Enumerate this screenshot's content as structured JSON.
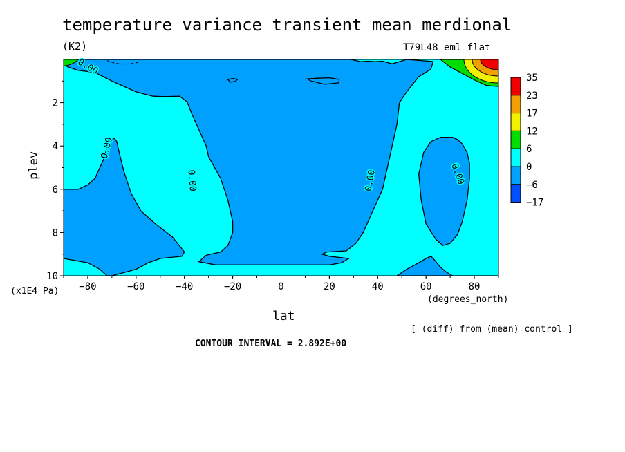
{
  "title": "temperature variance transient mean merdional",
  "units_label": "(K2)",
  "run_label": "T79L48_eml_flat",
  "y_unit": "(x1E4 Pa)",
  "x_unit": "(degrees_north)",
  "diff_note": "[ (diff) from (mean) control ]",
  "contour_interval": "CONTOUR INTERVAL = 2.892E+00",
  "chart_data": {
    "type": "contour",
    "title": "temperature variance transient mean merdional",
    "xlabel": "lat",
    "ylabel": "plev",
    "xlim": [
      -90,
      90
    ],
    "ylim": [
      0,
      10
    ],
    "y_inverted": true,
    "x_ticks": [
      -80,
      -60,
      -40,
      -20,
      0,
      20,
      40,
      60,
      80
    ],
    "y_ticks": [
      2,
      4,
      6,
      8,
      10
    ],
    "contour_interval": 2.892,
    "contour_labels": [
      "0.00",
      "0.00",
      "0.00",
      "0.00",
      "0.00"
    ],
    "colorbar": {
      "levels": [
        35,
        23,
        17,
        12,
        6,
        0,
        -6,
        -17
      ],
      "colors": [
        "#f00000",
        "#f0a000",
        "#f0f000",
        "#00dc00",
        "#00ffff",
        "#00a0ff",
        "#0050ff"
      ]
    },
    "fill_colors": {
      "background": "#00ffff",
      "negative": "#00a0ff",
      "strong_positive": [
        "#00dc00",
        "#f0f000",
        "#f0a000",
        "#f00000"
      ]
    },
    "regions": [
      {
        "name": "central-tropics",
        "sign": "negative",
        "x": [
          -90,
          -88,
          -84,
          -77,
          -70,
          -60,
          -53,
          -48,
          -42,
          -39,
          -38,
          -37,
          -35,
          -33,
          -31,
          -30,
          -25,
          -22,
          -20,
          -20,
          -22,
          -25,
          -31,
          -34,
          -27,
          -20,
          -10,
          0,
          10,
          20,
          25,
          28,
          20,
          17,
          19,
          27,
          31,
          34,
          38,
          40,
          42,
          44,
          46,
          48,
          49,
          52,
          57,
          62,
          63,
          58,
          52,
          46,
          42,
          39,
          36,
          33,
          31,
          29,
          27,
          25,
          22,
          18,
          -2,
          -10,
          -20,
          -36,
          -46,
          -57,
          -62,
          -63,
          -70,
          -76,
          -78,
          -90
        ],
        "y": [
          0.25,
          0.35,
          0.5,
          0.6,
          1.0,
          1.5,
          1.7,
          1.72,
          1.7,
          1.95,
          2.2,
          2.5,
          3.0,
          3.5,
          4.0,
          4.5,
          5.5,
          6.5,
          7.5,
          8.0,
          8.6,
          8.9,
          9.05,
          9.35,
          9.5,
          9.5,
          9.5,
          9.5,
          9.5,
          9.5,
          9.4,
          9.2,
          9.1,
          9.0,
          8.9,
          8.85,
          8.5,
          8.0,
          7.0,
          6.5,
          6.0,
          5.0,
          4.0,
          3.0,
          2.0,
          1.5,
          0.8,
          0.45,
          0.1,
          0.05,
          0.0,
          0.2,
          0.08,
          0.1,
          0.08,
          0.1,
          0.05,
          0.0,
          0.0,
          0.0,
          0.0,
          0.0,
          0.0,
          0.0,
          0.0,
          0.0,
          0.0,
          0.0,
          0.0,
          0.0,
          0.0,
          0.0,
          0.0,
          0.0
        ]
      },
      {
        "name": "sh-lobe",
        "sign": "negative",
        "x": [
          -84,
          -80,
          -77,
          -75,
          -73,
          -72,
          -70,
          -69,
          -68,
          -67,
          -65,
          -62,
          -58,
          -52,
          -45,
          -40,
          -41,
          -50,
          -55,
          -60,
          -70,
          -72,
          -72,
          -75,
          -80,
          -90,
          -90,
          -86
        ],
        "y": [
          6.0,
          5.8,
          5.5,
          5.0,
          4.5,
          4.0,
          3.7,
          3.65,
          3.8,
          4.3,
          5.2,
          6.2,
          7.0,
          7.6,
          8.2,
          8.9,
          9.1,
          9.2,
          9.4,
          9.7,
          10,
          10,
          10,
          9.7,
          9.4,
          9.2,
          6.0,
          6.0
        ]
      },
      {
        "name": "nh-lobe",
        "sign": "negative",
        "x": [
          66,
          62,
          59,
          57,
          58,
          60,
          64,
          67,
          70,
          73,
          75,
          77,
          78,
          78,
          77,
          75,
          73,
          71
        ],
        "y": [
          3.6,
          3.8,
          4.3,
          5.3,
          6.5,
          7.6,
          8.3,
          8.6,
          8.5,
          8.1,
          7.5,
          6.5,
          5.5,
          4.8,
          4.3,
          3.9,
          3.7,
          3.6
        ]
      },
      {
        "name": "nh-bottom",
        "sign": "negative",
        "x": [
          48,
          52,
          57,
          60,
          62,
          63,
          66,
          68,
          71,
          75,
          80,
          84,
          87,
          90,
          90,
          48
        ],
        "y": [
          10,
          9.7,
          9.4,
          9.2,
          9.1,
          9.2,
          9.6,
          9.8,
          10,
          10,
          10,
          10,
          10,
          10,
          10,
          10
        ]
      },
      {
        "name": "blob-20S",
        "sign": "negative",
        "x": [
          -22,
          -20,
          -18,
          -19,
          -21,
          -22
        ],
        "y": [
          0.93,
          0.88,
          0.92,
          1.02,
          1.05,
          0.93
        ]
      },
      {
        "name": "blob-12N",
        "sign": "negative",
        "x": [
          11,
          15,
          20,
          24,
          24,
          18,
          12
        ],
        "y": [
          0.9,
          0.87,
          0.85,
          0.92,
          1.08,
          1.15,
          0.98
        ]
      },
      {
        "name": "nh-polar-max",
        "sign": "positive",
        "x": [
          66,
          70,
          75,
          80,
          85,
          90,
          90,
          66
        ],
        "y": [
          0.0,
          0.35,
          0.65,
          0.95,
          1.2,
          1.25,
          0.0,
          0.0
        ]
      }
    ]
  }
}
